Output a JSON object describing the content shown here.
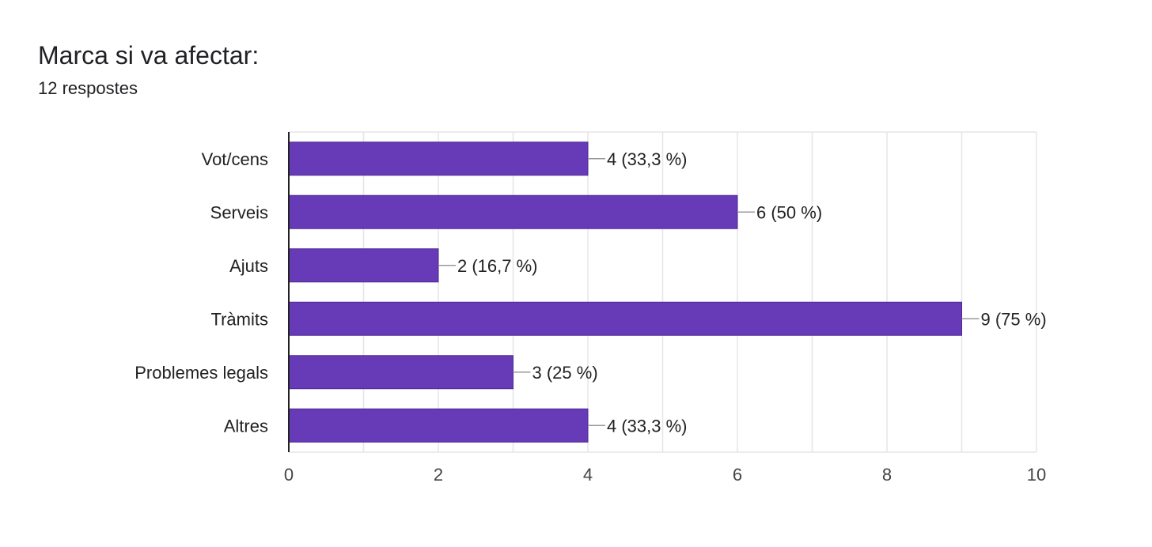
{
  "question": {
    "title": "Marca si va afectar:",
    "responses": "12 respostes"
  },
  "colors": {
    "bar": "#673ab7",
    "grid": "#e6e6e6",
    "axis": "#222222",
    "connector": "#999999"
  },
  "chart_data": {
    "type": "bar",
    "orientation": "horizontal",
    "title": "",
    "xlabel": "",
    "ylabel": "",
    "categories": [
      "Vot/cens",
      "Serveis",
      "Ajuts",
      "Tràmits",
      "Problemes legals",
      "Altres"
    ],
    "values": [
      4,
      6,
      2,
      9,
      3,
      4
    ],
    "data_labels": [
      "4 (33,3 %)",
      "6 (50 %)",
      "2 (16,7 %)",
      "9 (75 %)",
      "3 (25 %)",
      "4 (33,3 %)"
    ],
    "xlim": [
      0,
      10
    ],
    "x_ticks": [
      0,
      2,
      4,
      6,
      8,
      10
    ],
    "grid": true,
    "legend": "none"
  }
}
